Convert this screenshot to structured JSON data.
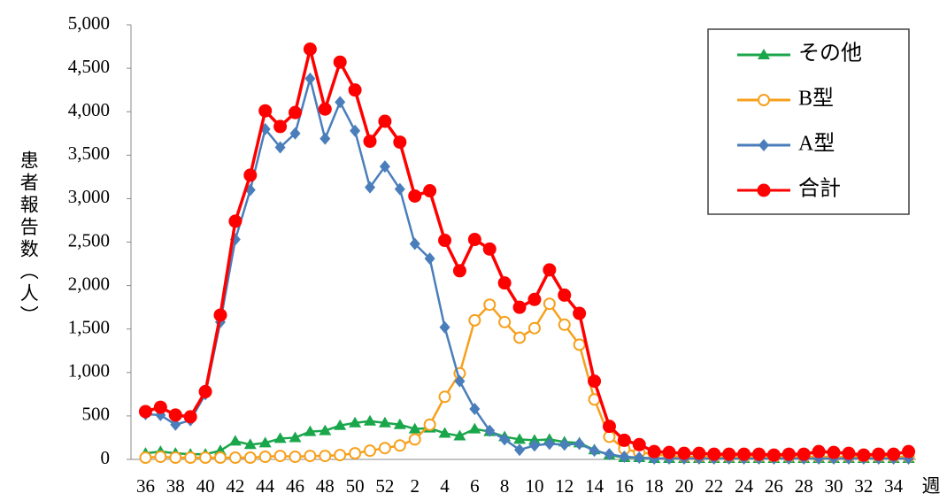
{
  "chart_data": {
    "type": "line",
    "ylabel": "患者報告数（人）",
    "xlabel": "週",
    "categories": [
      36,
      null,
      38,
      null,
      40,
      null,
      42,
      null,
      44,
      null,
      46,
      null,
      48,
      null,
      50,
      null,
      52,
      null,
      2,
      null,
      4,
      null,
      6,
      null,
      8,
      null,
      10,
      null,
      12,
      null,
      14,
      null,
      16,
      null,
      18,
      null,
      20,
      null,
      22,
      null,
      24,
      null,
      26,
      null,
      28,
      null,
      30,
      null,
      32,
      null,
      34,
      null
    ],
    "ylim": [
      0,
      5000
    ],
    "yticks": [
      0,
      500,
      {
        "value": 1000,
        "label": "1,000"
      },
      {
        "value": 1500,
        "label": "1,500"
      },
      {
        "value": 2000,
        "label": "2,000"
      },
      {
        "value": 2500,
        "label": "2,500"
      },
      {
        "value": 3000,
        "label": "3,000"
      },
      {
        "value": 3500,
        "label": "3,500"
      },
      {
        "value": 4000,
        "label": "4,000"
      },
      {
        "value": 4500,
        "label": "4,500"
      },
      {
        "value": 5000,
        "label": "5,000"
      }
    ],
    "legend": "upper right",
    "series": [
      {
        "name": "その他",
        "color": "#1aa64a",
        "marker": "triangle",
        "values": [
          70,
          90,
          70,
          60,
          60,
          100,
          210,
          170,
          190,
          240,
          250,
          320,
          330,
          390,
          420,
          440,
          420,
          400,
          350,
          360,
          300,
          270,
          350,
          320,
          260,
          230,
          220,
          230,
          200,
          190,
          110,
          50,
          20,
          20,
          10,
          10,
          10,
          10,
          10,
          10,
          10,
          10,
          10,
          10,
          10,
          10,
          10,
          10,
          10,
          10,
          10,
          10
        ]
      },
      {
        "name": "B型",
        "color": "#f7a01c",
        "marker": "open-circle",
        "values": [
          20,
          30,
          20,
          20,
          20,
          20,
          20,
          20,
          30,
          40,
          30,
          40,
          40,
          50,
          70,
          100,
          130,
          160,
          230,
          400,
          720,
          990,
          1600,
          1780,
          1580,
          1400,
          1510,
          1790,
          1550,
          1320,
          690,
          260,
          120,
          80,
          60,
          40,
          30,
          30,
          30,
          30,
          30,
          30,
          30,
          30,
          30,
          30,
          30,
          30,
          30,
          30,
          30,
          30
        ]
      },
      {
        "name": "A型",
        "color": "#4a7ebb",
        "marker": "diamond",
        "values": [
          520,
          510,
          400,
          450,
          750,
          1580,
          2530,
          3100,
          3800,
          3590,
          3750,
          4380,
          3690,
          4110,
          3780,
          3130,
          3370,
          3110,
          2480,
          2310,
          1520,
          900,
          580,
          330,
          230,
          110,
          160,
          180,
          170,
          180,
          100,
          60,
          30,
          20,
          10,
          10,
          10,
          10,
          10,
          10,
          10,
          10,
          10,
          10,
          10,
          10,
          10,
          10,
          10,
          10,
          10,
          10
        ]
      },
      {
        "name": "合計",
        "color": "#ff0000",
        "marker": "circle",
        "values": [
          550,
          600,
          510,
          490,
          780,
          1660,
          2740,
          3270,
          4010,
          3830,
          3990,
          4720,
          4030,
          4570,
          4250,
          3660,
          3890,
          3650,
          3030,
          3090,
          2520,
          2170,
          2530,
          2420,
          2030,
          1750,
          1840,
          2180,
          1890,
          1680,
          900,
          380,
          220,
          170,
          90,
          80,
          70,
          70,
          60,
          60,
          60,
          60,
          50,
          60,
          60,
          90,
          80,
          70,
          50,
          60,
          60,
          90
        ]
      }
    ]
  }
}
